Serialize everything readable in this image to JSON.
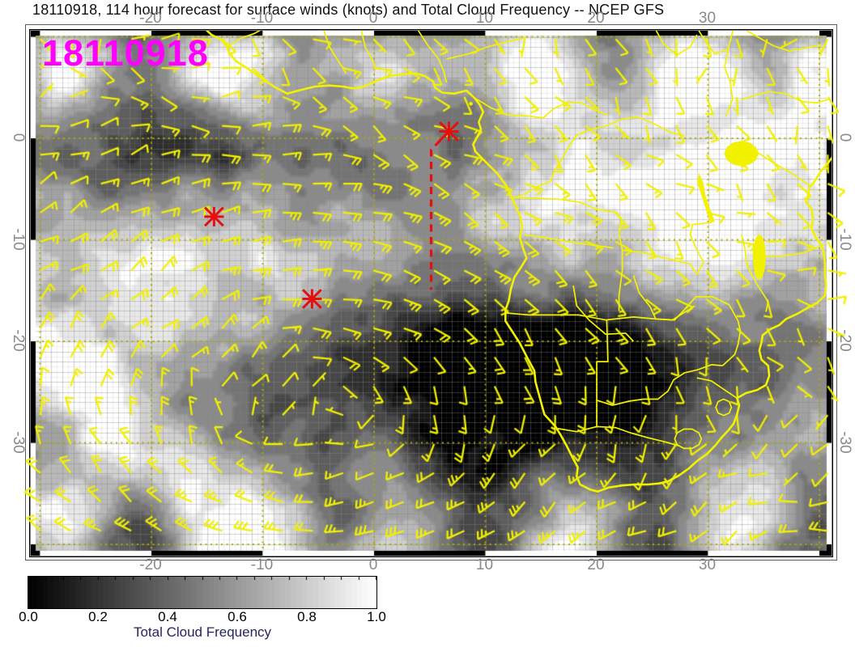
{
  "title": "18110918, 114 hour forecast for surface winds (knots) and Total Cloud Frequency -- NCEP GFS",
  "datestamp": {
    "text": "18110918",
    "color": "#ff00ff"
  },
  "chart_data": {
    "type": "heatmap",
    "subtype": "weather-map-with-wind-barbs",
    "title": "18110918, 114 hour forecast for surface winds (knots) and Total Cloud Frequency -- NCEP GFS",
    "model": "NCEP GFS",
    "forecast_hour": 114,
    "fields": [
      "surface winds (knots)",
      "Total Cloud Frequency"
    ],
    "map_region": "Africa and adjacent South Atlantic / Indian Ocean",
    "x_axis": {
      "ticks": [
        -20,
        -10,
        0,
        10,
        20,
        30
      ],
      "tick_labels": [
        "-20",
        "-10",
        "0",
        "10",
        "20",
        "30"
      ],
      "range": [
        -30.8,
        41.1
      ],
      "grid_interval_deg": 10
    },
    "y_axis": {
      "ticks": [
        0,
        -10,
        -20,
        -30
      ],
      "tick_labels": [
        "0",
        "-10",
        "-20",
        "-30"
      ],
      "range": [
        10.6,
        -41.1
      ],
      "grid_interval_deg": 10
    },
    "grid": {
      "style": "dotted",
      "color": "#aaaa00",
      "fine_interval_deg": 1
    },
    "wind_barbs": {
      "units": "knots",
      "color": "#f0f000"
    },
    "coastlines": {
      "color": "#f2f200"
    },
    "markers": [
      {
        "symbol": "asterisk",
        "color": "#e41010",
        "lon": -14.3,
        "lat": -7.8
      },
      {
        "symbol": "asterisk",
        "color": "#e41010",
        "lon": -5.5,
        "lat": -15.9
      },
      {
        "symbol": "asterisk",
        "color": "#e41010",
        "lon": 6.8,
        "lat": 0.6
      }
    ],
    "track": {
      "style": "dashed",
      "color": "#e41010",
      "points": [
        {
          "lon": 6.8,
          "lat": 0.6
        },
        {
          "lon": 5.2,
          "lat": -1.2
        },
        {
          "lon": 5.2,
          "lat": -15.0
        }
      ]
    },
    "colorbar": {
      "label": "Total Cloud Frequency",
      "label_color": "#242460",
      "tick_labels": [
        "0.0",
        "0.2",
        "0.4",
        "0.6",
        "0.8",
        "1.0"
      ],
      "min": 0.0,
      "max": 1.0,
      "gradient": [
        "#000000",
        "#ffffff"
      ]
    }
  }
}
